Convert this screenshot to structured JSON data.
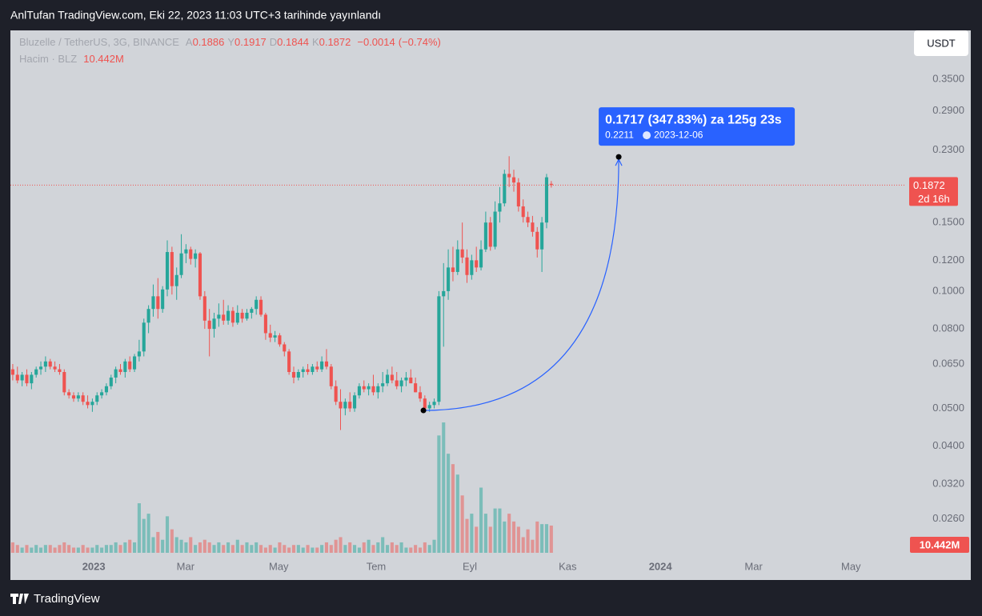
{
  "header": {
    "title": "AnlTufan TradingView.com, Eki 22, 2023 11:03 UTC+3 tarihinde yayınlandı"
  },
  "footer": {
    "brand": "TradingView"
  },
  "chart_data": {
    "type": "candlestick",
    "symbol": "Bluzelle / TetherUS, 3G, BINANCE",
    "ohlc_legend": [
      {
        "label": "A",
        "value": 0.1886
      },
      {
        "label": "Y",
        "value": 0.1917
      },
      {
        "label": "D",
        "value": 0.1844
      },
      {
        "label": "K",
        "value": 0.1872
      }
    ],
    "change": {
      "value": -0.0014,
      "label": "−0.0014"
    },
    "change_pct": {
      "value": -0.74,
      "label": "(−0.74%)"
    },
    "volume_title": "Hacim · BLZ",
    "volume_last": {
      "value": 10.442,
      "label": "10.442M"
    },
    "currency": "USDT",
    "last_price": 0.1872,
    "countdown": "2d 16h",
    "log_scale": true,
    "colors": {
      "up": "#26a69a",
      "down": "#ef5350"
    },
    "ylim": [
      0.0207,
      0.467
    ],
    "yticks": [
      {
        "value": 0.35,
        "label": "0.3500"
      },
      {
        "value": 0.29,
        "label": "0.2900"
      },
      {
        "value": 0.23,
        "label": "0.2300"
      },
      {
        "value": 0.15,
        "label": "0.1500"
      },
      {
        "value": 0.12,
        "label": "0.1200"
      },
      {
        "value": 0.1,
        "label": "0.1000"
      },
      {
        "value": 0.08,
        "label": "0.0800"
      },
      {
        "value": 0.065,
        "label": "0.0650"
      },
      {
        "value": 0.05,
        "label": "0.0500"
      },
      {
        "value": 0.04,
        "label": "0.0400"
      },
      {
        "value": 0.032,
        "label": "0.0320"
      },
      {
        "value": 0.026,
        "label": "0.0260"
      }
    ],
    "xlim": [
      -0.5,
      190.4
    ],
    "xticks": [
      {
        "value": 17.3,
        "label": "2023"
      },
      {
        "value": 36.9,
        "label": "Mar"
      },
      {
        "value": 56.8,
        "label": "May"
      },
      {
        "value": 77.6,
        "label": "Tem"
      },
      {
        "value": 97.6,
        "label": "Eyl"
      },
      {
        "value": 118.5,
        "label": "Kas"
      },
      {
        "value": 138.3,
        "label": "2024"
      },
      {
        "value": 158.2,
        "label": "Mar"
      },
      {
        "value": 179,
        "label": "May"
      }
    ],
    "vlim": [
      0,
      54
    ],
    "ohlc": [
      [
        0.063,
        0.065,
        0.059,
        0.061
      ],
      [
        0.061,
        0.064,
        0.058,
        0.059
      ],
      [
        0.059,
        0.062,
        0.057,
        0.061
      ],
      [
        0.061,
        0.063,
        0.057,
        0.058
      ],
      [
        0.058,
        0.062,
        0.056,
        0.061
      ],
      [
        0.061,
        0.064,
        0.06,
        0.063
      ],
      [
        0.063,
        0.066,
        0.061,
        0.064
      ],
      [
        0.064,
        0.068,
        0.062,
        0.066
      ],
      [
        0.066,
        0.067,
        0.063,
        0.064
      ],
      [
        0.064,
        0.066,
        0.062,
        0.063
      ],
      [
        0.063,
        0.065,
        0.061,
        0.062
      ],
      [
        0.062,
        0.063,
        0.054,
        0.055
      ],
      [
        0.055,
        0.056,
        0.053,
        0.054
      ],
      [
        0.054,
        0.055,
        0.052,
        0.053
      ],
      [
        0.053,
        0.055,
        0.052,
        0.054
      ],
      [
        0.054,
        0.055,
        0.051,
        0.052
      ],
      [
        0.052,
        0.054,
        0.05,
        0.051
      ],
      [
        0.051,
        0.053,
        0.049,
        0.052
      ],
      [
        0.052,
        0.055,
        0.051,
        0.054
      ],
      [
        0.054,
        0.056,
        0.053,
        0.055
      ],
      [
        0.055,
        0.058,
        0.054,
        0.057
      ],
      [
        0.057,
        0.061,
        0.056,
        0.06
      ],
      [
        0.06,
        0.064,
        0.058,
        0.063
      ],
      [
        0.063,
        0.065,
        0.061,
        0.062
      ],
      [
        0.062,
        0.067,
        0.06,
        0.066
      ],
      [
        0.066,
        0.068,
        0.062,
        0.063
      ],
      [
        0.063,
        0.069,
        0.062,
        0.068
      ],
      [
        0.068,
        0.075,
        0.066,
        0.07
      ],
      [
        0.07,
        0.085,
        0.068,
        0.083
      ],
      [
        0.083,
        0.092,
        0.078,
        0.09
      ],
      [
        0.09,
        0.104,
        0.086,
        0.097
      ],
      [
        0.097,
        0.108,
        0.085,
        0.09
      ],
      [
        0.09,
        0.103,
        0.088,
        0.101
      ],
      [
        0.101,
        0.135,
        0.097,
        0.126
      ],
      [
        0.126,
        0.13,
        0.098,
        0.103
      ],
      [
        0.103,
        0.115,
        0.095,
        0.11
      ],
      [
        0.11,
        0.14,
        0.108,
        0.125
      ],
      [
        0.125,
        0.132,
        0.118,
        0.128
      ],
      [
        0.128,
        0.13,
        0.117,
        0.121
      ],
      [
        0.121,
        0.128,
        0.115,
        0.125
      ],
      [
        0.125,
        0.126,
        0.095,
        0.097
      ],
      [
        0.097,
        0.1,
        0.08,
        0.084
      ],
      [
        0.084,
        0.09,
        0.068,
        0.08
      ],
      [
        0.08,
        0.088,
        0.076,
        0.085
      ],
      [
        0.085,
        0.093,
        0.081,
        0.087
      ],
      [
        0.087,
        0.095,
        0.082,
        0.084
      ],
      [
        0.084,
        0.092,
        0.082,
        0.089
      ],
      [
        0.089,
        0.091,
        0.081,
        0.083
      ],
      [
        0.083,
        0.092,
        0.082,
        0.088
      ],
      [
        0.088,
        0.09,
        0.083,
        0.085
      ],
      [
        0.085,
        0.09,
        0.084,
        0.088
      ],
      [
        0.088,
        0.091,
        0.085,
        0.09
      ],
      [
        0.09,
        0.097,
        0.087,
        0.095
      ],
      [
        0.095,
        0.097,
        0.086,
        0.087
      ],
      [
        0.087,
        0.088,
        0.075,
        0.078
      ],
      [
        0.078,
        0.082,
        0.074,
        0.076
      ],
      [
        0.076,
        0.079,
        0.074,
        0.077
      ],
      [
        0.077,
        0.078,
        0.072,
        0.073
      ],
      [
        0.073,
        0.074,
        0.068,
        0.07
      ],
      [
        0.07,
        0.071,
        0.061,
        0.062
      ],
      [
        0.062,
        0.064,
        0.058,
        0.06
      ],
      [
        0.06,
        0.063,
        0.059,
        0.062
      ],
      [
        0.062,
        0.064,
        0.06,
        0.063
      ],
      [
        0.063,
        0.065,
        0.061,
        0.062
      ],
      [
        0.062,
        0.065,
        0.061,
        0.064
      ],
      [
        0.064,
        0.066,
        0.062,
        0.063
      ],
      [
        0.063,
        0.068,
        0.062,
        0.066
      ],
      [
        0.066,
        0.071,
        0.063,
        0.064
      ],
      [
        0.064,
        0.065,
        0.056,
        0.057
      ],
      [
        0.057,
        0.059,
        0.051,
        0.052
      ],
      [
        0.052,
        0.056,
        0.044,
        0.05
      ],
      [
        0.05,
        0.053,
        0.048,
        0.052
      ],
      [
        0.052,
        0.055,
        0.049,
        0.05
      ],
      [
        0.05,
        0.055,
        0.049,
        0.054
      ],
      [
        0.054,
        0.058,
        0.053,
        0.057
      ],
      [
        0.057,
        0.059,
        0.055,
        0.056
      ],
      [
        0.056,
        0.058,
        0.054,
        0.057
      ],
      [
        0.057,
        0.061,
        0.054,
        0.055
      ],
      [
        0.055,
        0.058,
        0.053,
        0.057
      ],
      [
        0.057,
        0.062,
        0.055,
        0.058
      ],
      [
        0.058,
        0.063,
        0.057,
        0.061
      ],
      [
        0.061,
        0.064,
        0.058,
        0.059
      ],
      [
        0.059,
        0.062,
        0.056,
        0.057
      ],
      [
        0.057,
        0.06,
        0.055,
        0.059
      ],
      [
        0.059,
        0.062,
        0.057,
        0.06
      ],
      [
        0.06,
        0.063,
        0.058,
        0.058
      ],
      [
        0.058,
        0.06,
        0.055,
        0.055
      ],
      [
        0.055,
        0.057,
        0.052,
        0.053
      ],
      [
        0.053,
        0.054,
        0.049,
        0.05
      ],
      [
        0.05,
        0.052,
        0.049,
        0.051
      ],
      [
        0.051,
        0.053,
        0.05,
        0.052
      ],
      [
        0.052,
        0.1,
        0.051,
        0.097
      ],
      [
        0.097,
        0.118,
        0.072,
        0.1
      ],
      [
        0.1,
        0.128,
        0.095,
        0.115
      ],
      [
        0.115,
        0.13,
        0.106,
        0.112
      ],
      [
        0.112,
        0.135,
        0.11,
        0.128
      ],
      [
        0.128,
        0.15,
        0.118,
        0.122
      ],
      [
        0.122,
        0.128,
        0.105,
        0.11
      ],
      [
        0.11,
        0.124,
        0.107,
        0.12
      ],
      [
        0.12,
        0.13,
        0.112,
        0.115
      ],
      [
        0.115,
        0.135,
        0.113,
        0.128
      ],
      [
        0.128,
        0.16,
        0.126,
        0.15
      ],
      [
        0.15,
        0.155,
        0.127,
        0.13
      ],
      [
        0.13,
        0.17,
        0.128,
        0.16
      ],
      [
        0.16,
        0.185,
        0.15,
        0.168
      ],
      [
        0.168,
        0.205,
        0.165,
        0.2
      ],
      [
        0.2,
        0.222,
        0.185,
        0.196
      ],
      [
        0.196,
        0.205,
        0.18,
        0.19
      ],
      [
        0.19,
        0.195,
        0.16,
        0.165
      ],
      [
        0.165,
        0.172,
        0.15,
        0.155
      ],
      [
        0.155,
        0.16,
        0.146,
        0.15
      ],
      [
        0.15,
        0.156,
        0.138,
        0.142
      ],
      [
        0.142,
        0.146,
        0.122,
        0.128
      ],
      [
        0.128,
        0.155,
        0.112,
        0.15
      ],
      [
        0.15,
        0.2,
        0.145,
        0.196
      ],
      [
        0.1886,
        0.1917,
        0.1844,
        0.1872
      ]
    ],
    "volume": [
      4,
      3,
      2,
      3,
      2,
      3,
      2,
      3,
      3,
      2,
      3,
      4,
      3,
      2,
      2,
      3,
      2,
      2,
      3,
      2,
      3,
      3,
      4,
      3,
      4,
      5,
      4,
      19,
      13,
      15,
      6,
      8,
      5,
      14,
      9,
      6,
      5,
      4,
      6,
      3,
      4,
      5,
      4,
      3,
      4,
      3,
      4,
      3,
      5,
      3,
      4,
      3,
      4,
      3,
      2,
      3,
      2,
      4,
      3,
      2,
      3,
      3,
      2,
      3,
      2,
      2,
      3,
      4,
      3,
      5,
      6,
      3,
      4,
      3,
      2,
      4,
      5,
      3,
      4,
      6,
      3,
      4,
      3,
      4,
      2,
      2,
      3,
      2,
      4,
      3,
      5,
      45,
      50,
      38,
      34,
      30,
      22,
      13,
      15,
      10,
      25,
      15,
      10,
      17,
      17,
      12,
      15,
      12,
      10,
      6,
      9,
      5,
      12,
      11,
      11,
      10.442
    ],
    "measure": {
      "label": "0.1717 (347.83%) za 125g 23s",
      "from_x": 87.7,
      "from_y": 0.0494,
      "to_x": 129.4,
      "to_y": 0.2211,
      "date": "2023-12-06"
    }
  }
}
